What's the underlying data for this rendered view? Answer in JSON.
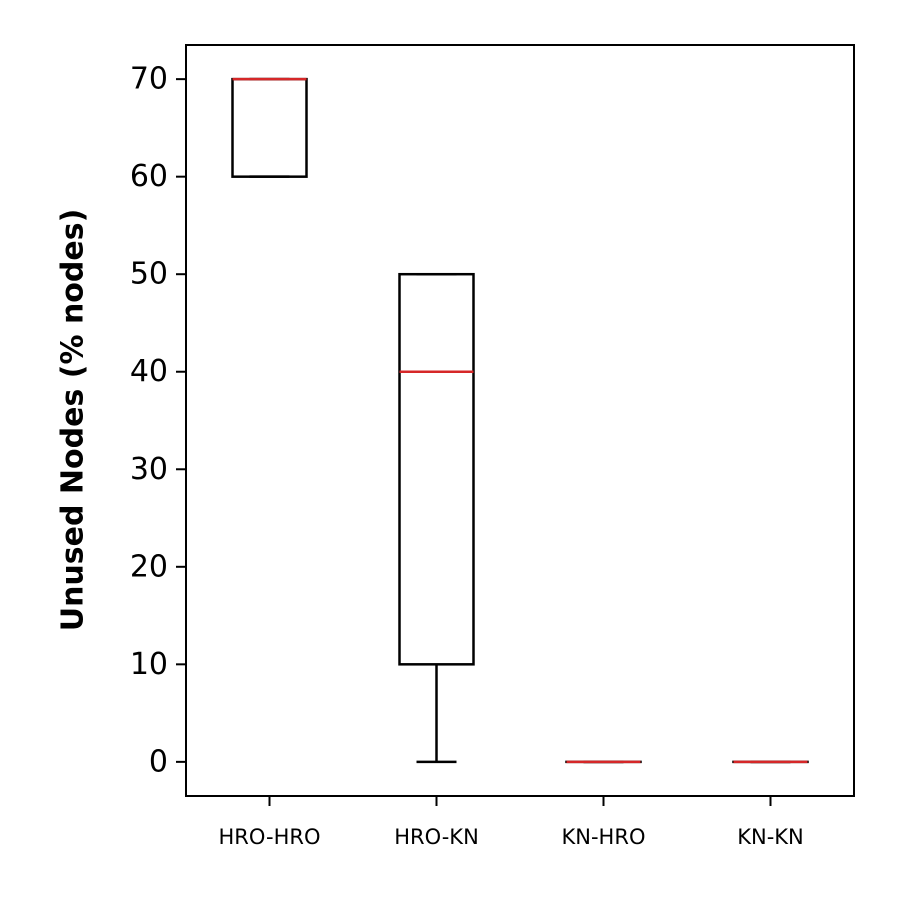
{
  "chart_data": {
    "type": "box",
    "title": "",
    "xlabel": "",
    "ylabel": "Unused Nodes (% nodes)",
    "categories": [
      "HRO-HRO",
      "HRO-KN",
      "KN-HRO",
      "KN-KN"
    ],
    "boxes": [
      {
        "category": "HRO-HRO",
        "whisker_low": 60,
        "q1": 60,
        "median": 70,
        "q3": 70,
        "whisker_high": 70
      },
      {
        "category": "HRO-KN",
        "whisker_low": 0,
        "q1": 10,
        "median": 40,
        "q3": 50,
        "whisker_high": 50
      },
      {
        "category": "KN-HRO",
        "whisker_low": 0,
        "q1": 0,
        "median": 0,
        "q3": 0,
        "whisker_high": 0
      },
      {
        "category": "KN-KN",
        "whisker_low": 0,
        "q1": 0,
        "median": 0,
        "q3": 0,
        "whisker_high": 0
      }
    ],
    "yticks": [
      0,
      10,
      20,
      30,
      40,
      50,
      60,
      70
    ],
    "ylim": [
      -3.5,
      73.5
    ],
    "grid": false,
    "colors": {
      "box": "#000000",
      "median": "#d62728",
      "axes": "#000000"
    }
  }
}
